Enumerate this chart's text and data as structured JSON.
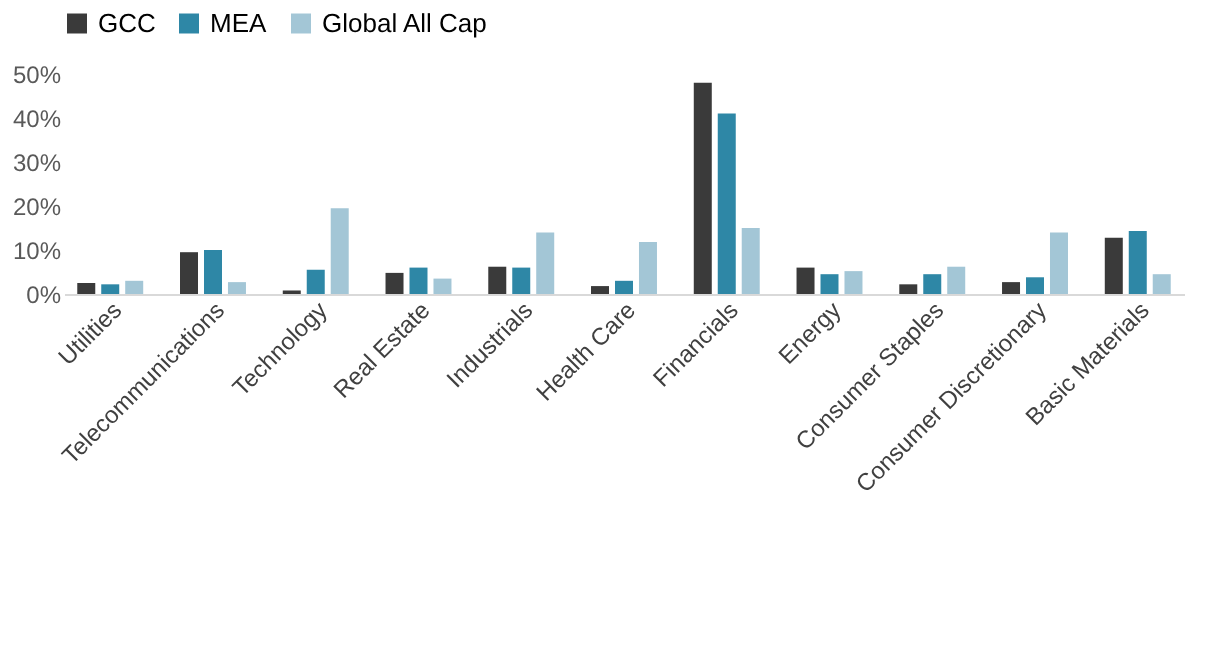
{
  "chart_data": {
    "type": "bar",
    "categories": [
      "Utilities",
      "Telecommunications",
      "Technology",
      "Real Estate",
      "Industrials",
      "Health Care",
      "Financials",
      "Energy",
      "Consumer Staples",
      "Consumer Discretionary",
      "Basic Materials"
    ],
    "series": [
      {
        "name": "GCC",
        "color": "#3a3a3a",
        "values": [
          2.5,
          9.5,
          0.8,
          4.8,
          6.2,
          1.8,
          48,
          6,
          2.2,
          2.7,
          12.8
        ]
      },
      {
        "name": "MEA",
        "color": "#2e87a6",
        "values": [
          2.2,
          10,
          5.5,
          6,
          6,
          3,
          41,
          4.5,
          4.5,
          3.8,
          14.3
        ]
      },
      {
        "name": "Global All Cap",
        "color": "#a3c6d6",
        "values": [
          3,
          2.7,
          19.5,
          3.5,
          14,
          11.8,
          15,
          5.2,
          6.2,
          14,
          4.5
        ]
      }
    ],
    "ylim": [
      0,
      50
    ],
    "yticks": [
      {
        "value": 0,
        "label": "0%"
      },
      {
        "value": 10,
        "label": "10%"
      },
      {
        "value": 20,
        "label": "20%"
      },
      {
        "value": 30,
        "label": "30%"
      },
      {
        "value": 40,
        "label": "40%"
      },
      {
        "value": 50,
        "label": "50%"
      }
    ],
    "grid": false,
    "legend": "top"
  }
}
